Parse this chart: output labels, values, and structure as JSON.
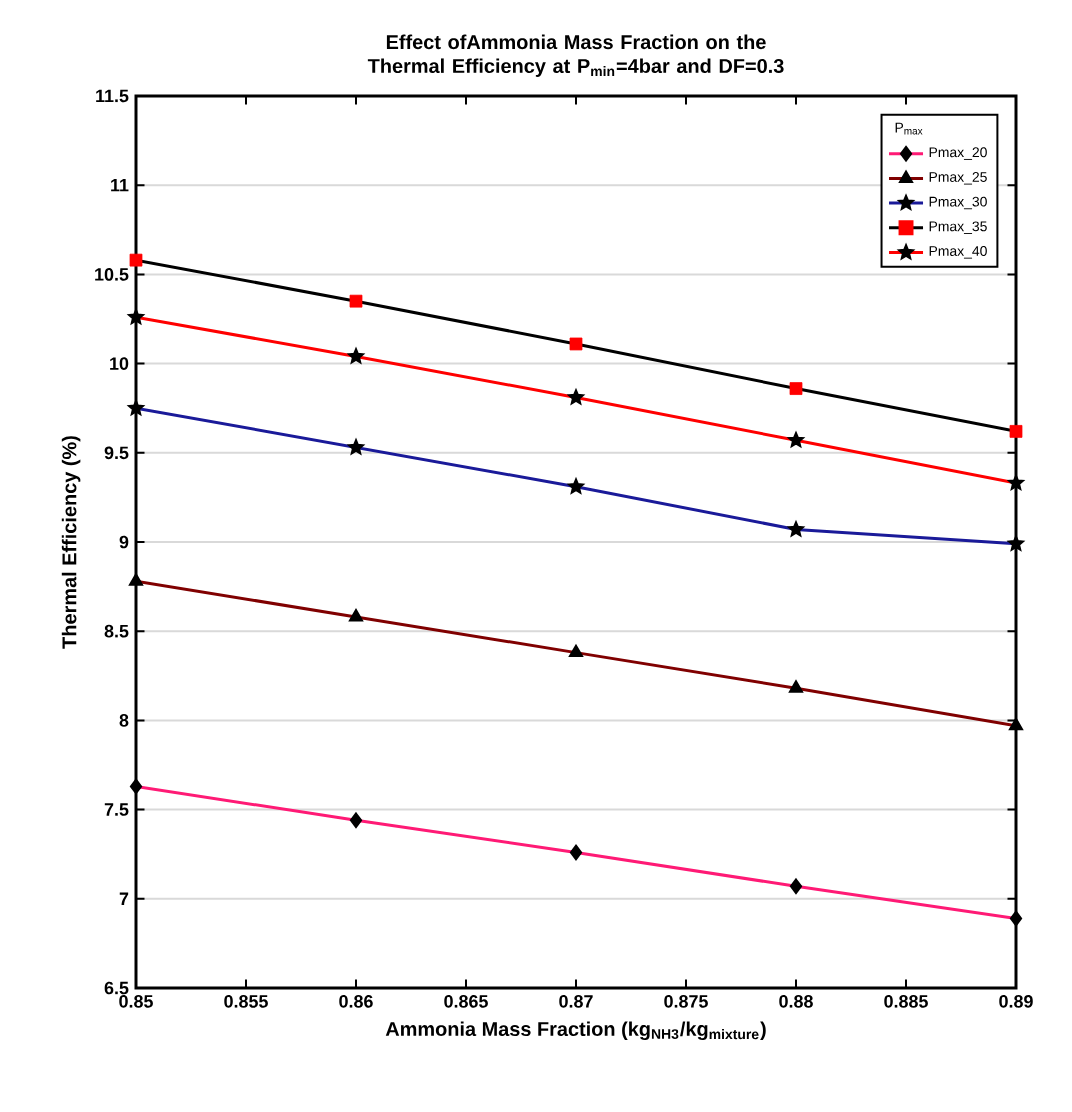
{
  "chart_data": {
    "type": "line",
    "title": "Effect ofAmmonia Mass Fraction on the Thermal Efficiency at P$_{min}$=4bar and DF=0.3",
    "xlabel": "Ammonia Mass Fraction (kg$_{NH3}$/kg$_{mixture}$)",
    "ylabel": "Thermal Efficiency (%)",
    "legend_title": "P$_{max}$",
    "x": [
      0.85,
      0.86,
      0.87,
      0.88,
      0.89
    ],
    "xlim": [
      0.85,
      0.89
    ],
    "xticks": [
      0.85,
      0.855,
      0.86,
      0.865,
      0.87,
      0.875,
      0.88,
      0.885,
      0.89
    ],
    "ylim": [
      6.5,
      11.5
    ],
    "yticks": [
      6.5,
      7,
      7.5,
      8,
      8.5,
      9,
      9.5,
      10,
      10.5,
      11,
      11.5
    ],
    "grid": "y",
    "legend": "top right",
    "line_style": "solid",
    "series": [
      {
        "name": "Pmax_20",
        "color": "#ff1a75",
        "marker": "diamond",
        "values": [
          7.63,
          7.44,
          7.26,
          7.07,
          6.89
        ]
      },
      {
        "name": "Pmax_25",
        "color": "#800000",
        "marker": "triangle",
        "values": [
          8.78,
          8.58,
          8.38,
          8.18,
          7.97
        ]
      },
      {
        "name": "Pmax_30",
        "color": "#1a1a99",
        "marker": "star",
        "values": [
          9.75,
          9.53,
          9.31,
          9.07,
          8.99
        ]
      },
      {
        "name": "Pmax_35",
        "color": "#000000",
        "marker": "square",
        "colors": [
          "#ff0000",
          "#ff0000",
          "#ff0000",
          "#ff0000",
          "#ff0000"
        ],
        "values": [
          10.58,
          10.35,
          10.11,
          9.86,
          9.62
        ]
      },
      {
        "name": "Pmax_40",
        "color": "#ff0000",
        "marker": "star",
        "values": [
          10.26,
          10.04,
          9.81,
          9.57,
          9.33
        ]
      }
    ]
  }
}
